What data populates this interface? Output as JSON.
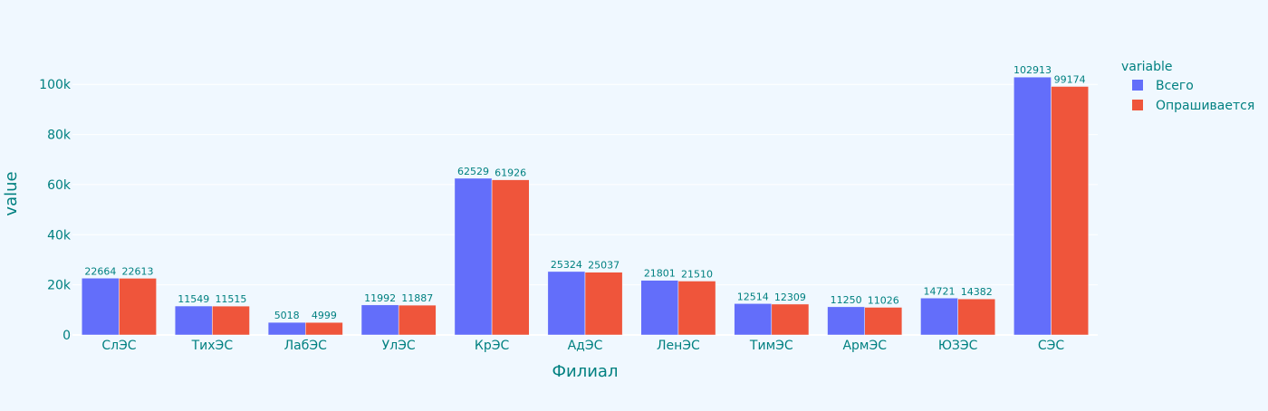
{
  "chart_data": {
    "type": "bar",
    "barmode": "group",
    "xlabel": "Филиал",
    "ylabel": "value",
    "legend_title": "variable",
    "legend_placement": "top-right",
    "grid": true,
    "ylim": [
      0,
      112000
    ],
    "yticks": [
      0,
      20000,
      40000,
      60000,
      80000,
      100000
    ],
    "ytick_labels": [
      "0",
      "20k",
      "40k",
      "60k",
      "80k",
      "100k"
    ],
    "categories": [
      "СлЭС",
      "ТихЭС",
      "ЛабЭС",
      "УлЭС",
      "КрЭС",
      "АдЭС",
      "ЛенЭС",
      "ТимЭС",
      "АрмЭС",
      "ЮЗЭС",
      "СЭС"
    ],
    "series": [
      {
        "name": "Всего",
        "color": "#636efa",
        "values": [
          22664,
          11549,
          5018,
          11992,
          62529,
          25324,
          21801,
          12514,
          11250,
          14721,
          102913
        ]
      },
      {
        "name": "Опрашивается",
        "color": "#ef553b",
        "values": [
          22613,
          11515,
          4999,
          11887,
          61926,
          25037,
          21510,
          12309,
          11026,
          14382,
          99174
        ]
      }
    ]
  }
}
